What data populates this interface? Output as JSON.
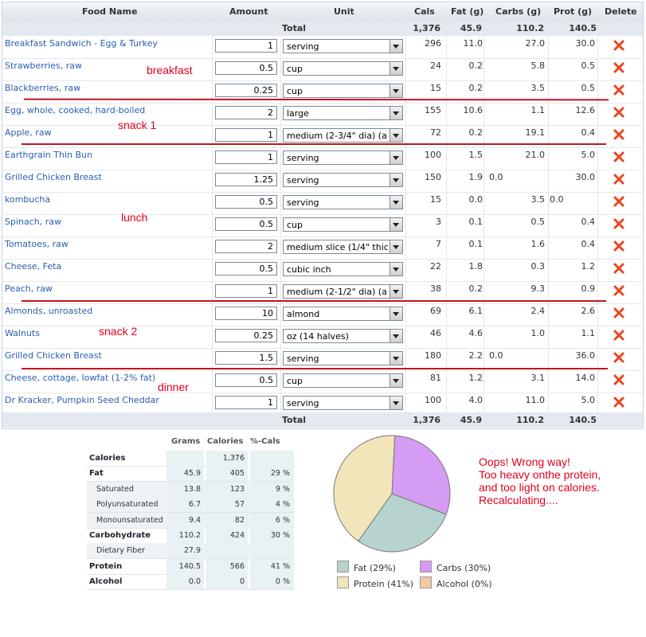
{
  "columns": {
    "food_name": "Food Name",
    "amount": "Amount",
    "unit": "Unit",
    "cals": "Cals",
    "fat": "Fat (g)",
    "carbs": "Carbs (g)",
    "prot": "Prot (g)",
    "delete": "Delete"
  },
  "totals": {
    "label": "Total",
    "cals": "1,376",
    "fat": "45.9",
    "carbs": "110.2",
    "prot": "140.5"
  },
  "rows": [
    {
      "name": "Breakfast Sandwich - Egg & Turkey",
      "amount": "1",
      "unit": "serving",
      "cals": "296",
      "fat": "11.0",
      "carbs": "27.0",
      "prot": "30.0"
    },
    {
      "name": "Strawberries, raw",
      "amount": "0.5",
      "unit": "cup",
      "cals": "24",
      "fat": "0.2",
      "carbs": "5.8",
      "prot": "0.5"
    },
    {
      "name": "Blackberries, raw",
      "amount": "0.25",
      "unit": "cup",
      "cals": "15",
      "fat": "0.2",
      "carbs": "3.5",
      "prot": "0.5"
    },
    {
      "name": "Egg, whole, cooked, hard-boiled",
      "amount": "2",
      "unit": "large",
      "cals": "155",
      "fat": "10.6",
      "carbs": "1.1",
      "prot": "12.6"
    },
    {
      "name": "Apple, raw",
      "amount": "1",
      "unit": "medium (2-3/4\" dia) (a",
      "cals": "72",
      "fat": "0.2",
      "carbs": "19.1",
      "prot": "0.4"
    },
    {
      "name": "Earthgrain Thin Bun",
      "amount": "1",
      "unit": "serving",
      "cals": "100",
      "fat": "1.5",
      "carbs": "21.0",
      "prot": "5.0"
    },
    {
      "name": "Grilled Chicken Breast",
      "amount": "1.25",
      "unit": "serving",
      "cals": "150",
      "fat": "1.9",
      "carbs": "0.0",
      "prot": "30.0",
      "carbs_left": true
    },
    {
      "name": "kombucha",
      "amount": "0.5",
      "unit": "serving",
      "cals": "15",
      "fat": "0.0",
      "carbs": "3.5",
      "prot": "0.0",
      "prot_left": true
    },
    {
      "name": "Spinach, raw",
      "amount": "0.5",
      "unit": "cup",
      "cals": "3",
      "fat": "0.1",
      "carbs": "0.5",
      "prot": "0.4"
    },
    {
      "name": "Tomatoes, raw",
      "amount": "2",
      "unit": "medium slice (1/4\" thic",
      "cals": "7",
      "fat": "0.1",
      "carbs": "1.6",
      "prot": "0.4"
    },
    {
      "name": "Cheese, Feta",
      "amount": "0.5",
      "unit": "cubic inch",
      "cals": "22",
      "fat": "1.8",
      "carbs": "0.3",
      "prot": "1.2"
    },
    {
      "name": "Peach, raw",
      "amount": "1",
      "unit": "medium (2-1/2\" dia) (a",
      "cals": "38",
      "fat": "0.2",
      "carbs": "9.3",
      "prot": "0.9"
    },
    {
      "name": "Almonds, unroasted",
      "amount": "10",
      "unit": "almond",
      "cals": "69",
      "fat": "6.1",
      "carbs": "2.4",
      "prot": "2.6"
    },
    {
      "name": "Walnuts",
      "amount": "0.25",
      "unit": "oz (14 halves)",
      "cals": "46",
      "fat": "4.6",
      "carbs": "1.0",
      "prot": "1.1"
    },
    {
      "name": "Grilled Chicken Breast",
      "amount": "1.5",
      "unit": "serving",
      "cals": "180",
      "fat": "2.2",
      "carbs": "0.0",
      "prot": "36.0",
      "carbs_left": true
    },
    {
      "name": "Cheese, cottage, lowfat (1-2% fat)",
      "amount": "0.5",
      "unit": "cup",
      "cals": "81",
      "fat": "1.2",
      "carbs": "3.1",
      "prot": "14.0"
    },
    {
      "name": "Dr Kracker, Pumpkin Seed Cheddar",
      "amount": "1",
      "unit": "serving",
      "cals": "100",
      "fat": "4.0",
      "carbs": "11.0",
      "prot": "5.0"
    }
  ],
  "annotations": {
    "breakfast": "breakfast",
    "snack1": "snack 1",
    "lunch": "lunch",
    "snack2": "snack 2",
    "dinner": "dinner"
  },
  "nutrition": {
    "headers": {
      "grams": "Grams",
      "calories": "Calories",
      "pct": "%-Cals"
    },
    "rows": [
      {
        "label": "Calories",
        "grams": "",
        "calories": "1,376",
        "pct": "",
        "bold": true
      },
      {
        "label": "Fat",
        "grams": "45.9",
        "calories": "405",
        "pct": "29 %",
        "bold": true
      },
      {
        "label": "Saturated",
        "grams": "13.8",
        "calories": "123",
        "pct": "9 %",
        "indent": true
      },
      {
        "label": "Polyunsaturated",
        "grams": "6.7",
        "calories": "57",
        "pct": "4 %",
        "indent": true
      },
      {
        "label": "Monounsaturated",
        "grams": "9.4",
        "calories": "82",
        "pct": "6 %",
        "indent": true
      },
      {
        "label": "Carbohydrate",
        "grams": "110.2",
        "calories": "424",
        "pct": "30 %",
        "bold": true
      },
      {
        "label": "Dietary Fiber",
        "grams": "27.9",
        "calories": "",
        "pct": "",
        "indent": true
      },
      {
        "label": "Protein",
        "grams": "140.5",
        "calories": "566",
        "pct": "41 %",
        "bold": true
      },
      {
        "label": "Alcohol",
        "grams": "0.0",
        "calories": "0",
        "pct": "0 %",
        "bold": true
      }
    ]
  },
  "chart_data": {
    "type": "pie",
    "categories": [
      "Fat",
      "Carbs",
      "Protein",
      "Alcohol"
    ],
    "values": [
      29,
      30,
      41,
      0
    ],
    "colors": [
      "#b7d3cf",
      "#d59cf3",
      "#f3e5ba",
      "#f2c9a4"
    ],
    "legend": [
      "Fat (29%)",
      "Carbs (30%)",
      "Protein (41%)",
      "Alcohol (0%)"
    ]
  },
  "note": [
    "Oops! Wrong way!",
    "Too heavy onthe protein,",
    "and too light on calories.",
    "Recalculating...."
  ]
}
